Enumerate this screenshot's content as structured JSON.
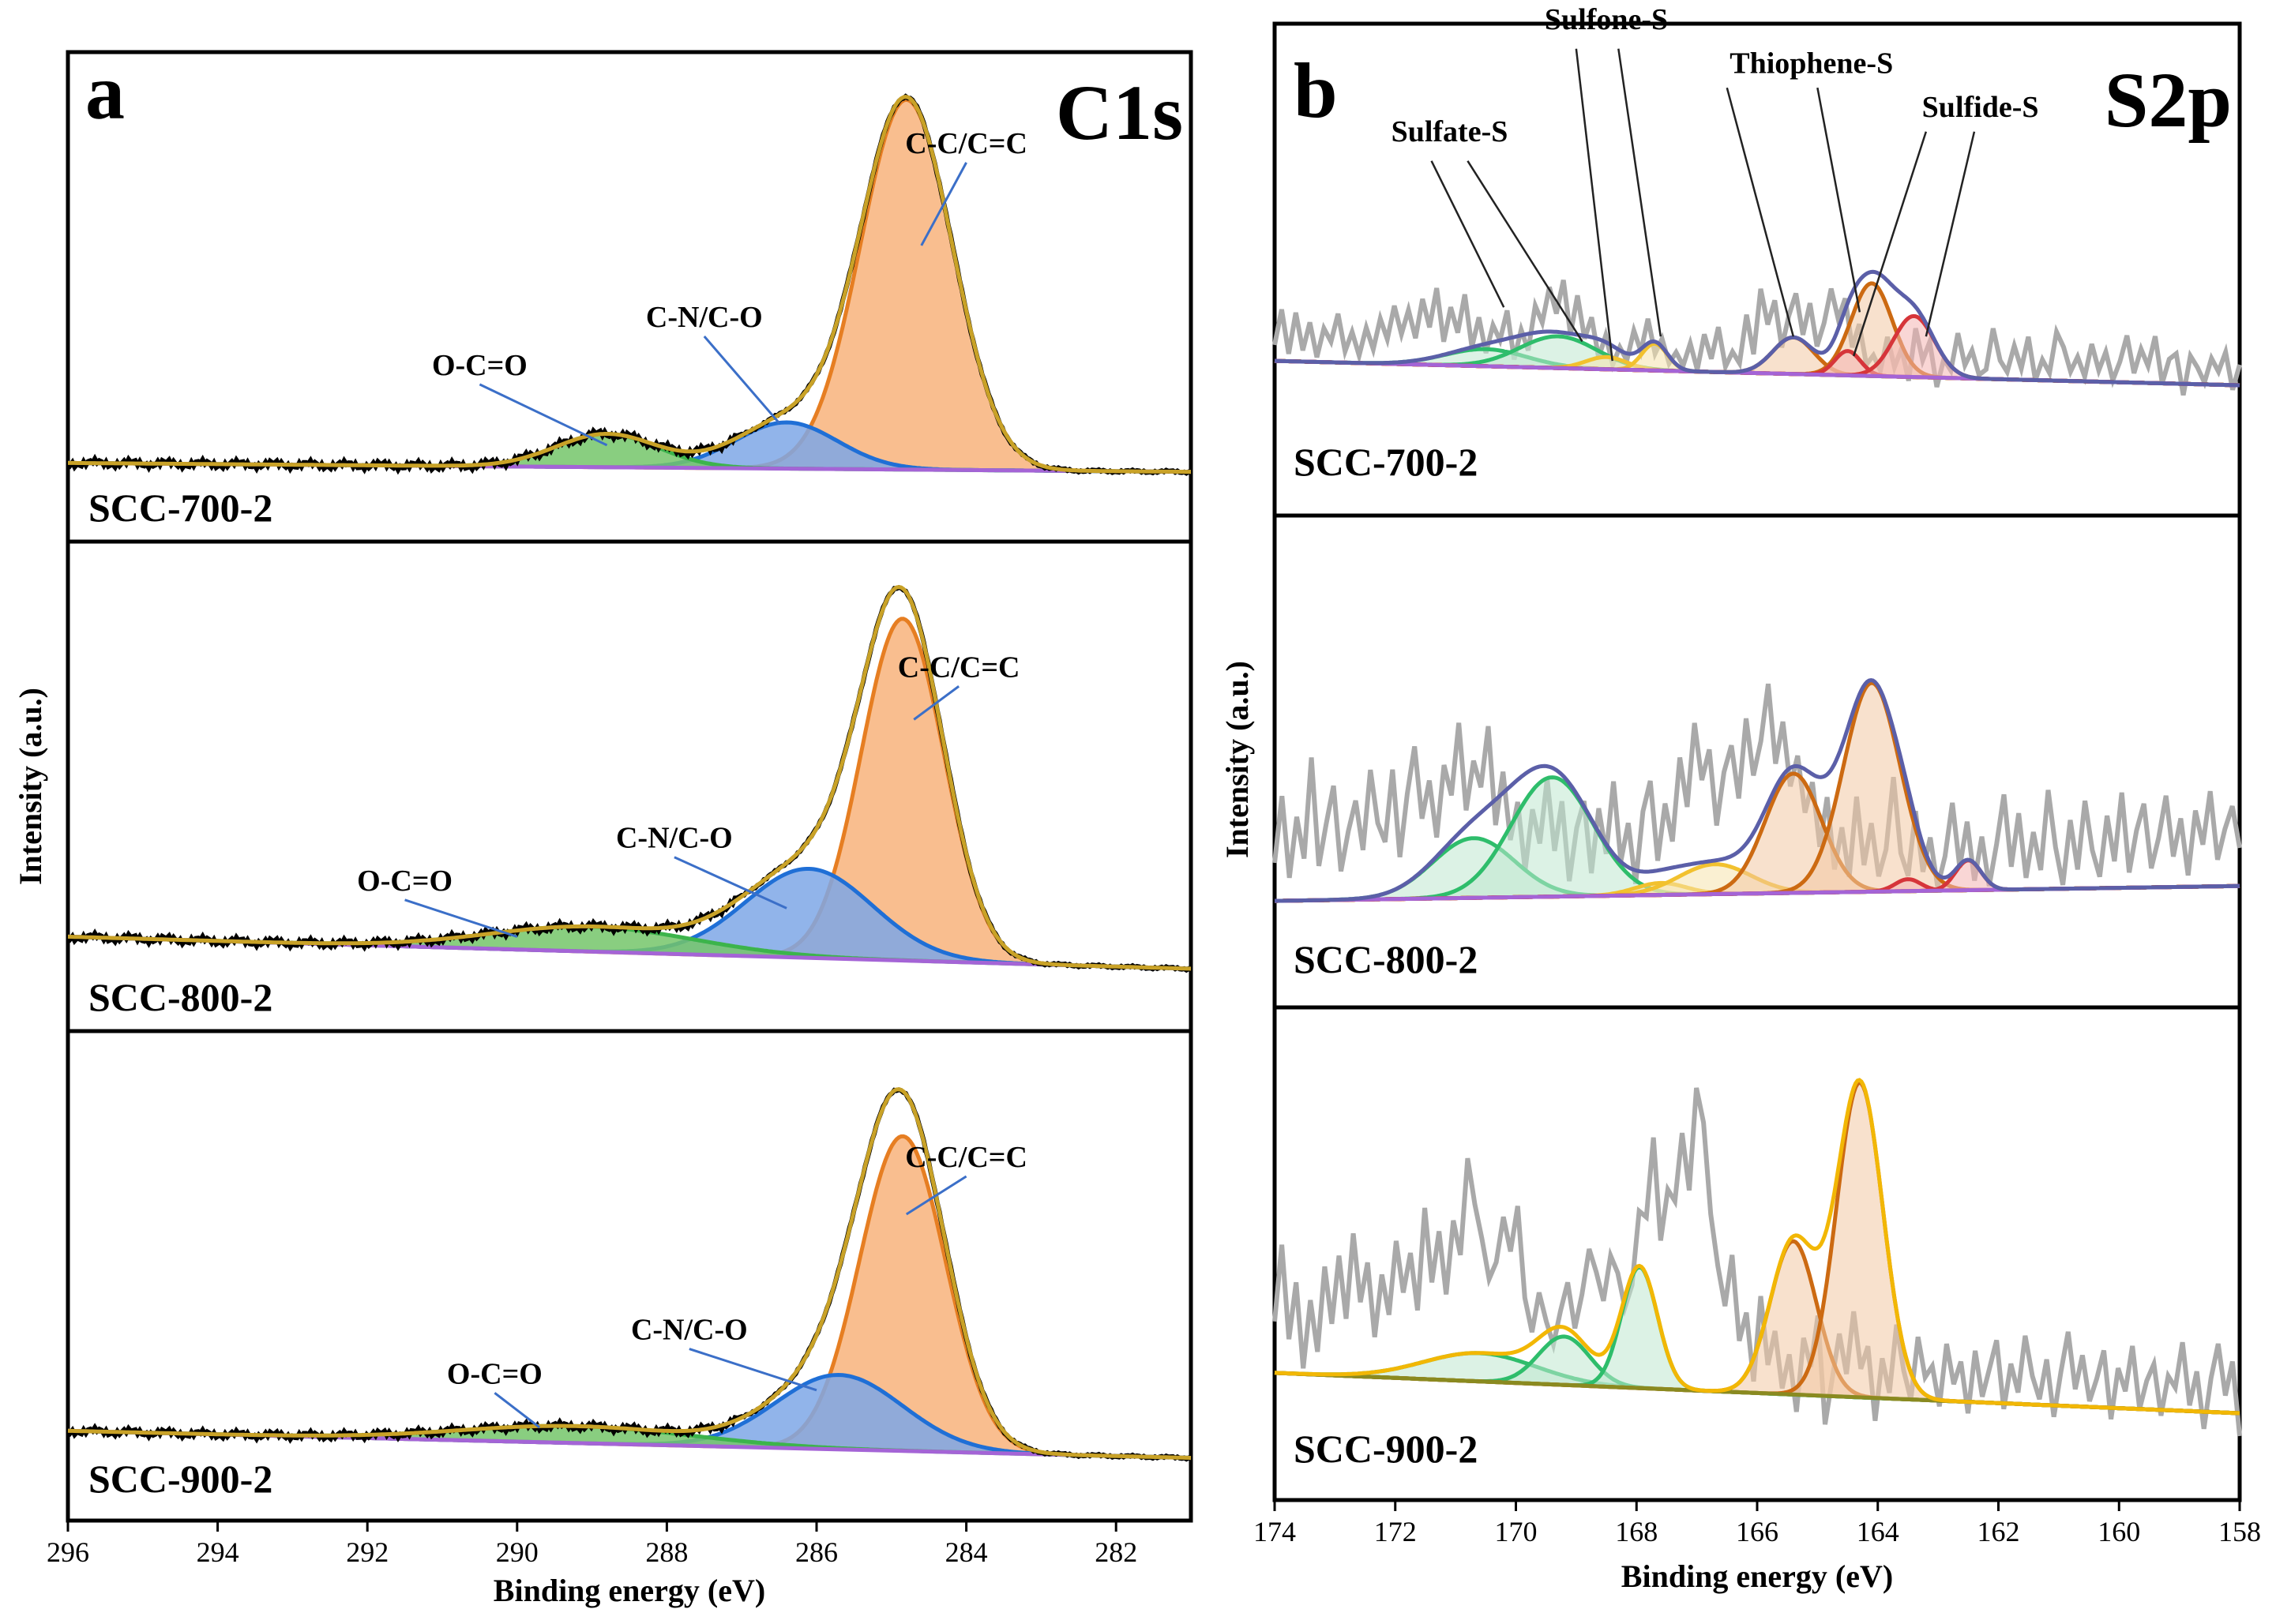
{
  "chart_data": [
    {
      "type": "line",
      "panel_letter": "a",
      "core_level": "C1s",
      "xlabel": "Binding energy (eV)",
      "ylabel": "Intensity (a.u.)",
      "xlim": [
        296,
        281
      ],
      "xticks": [
        296,
        294,
        292,
        290,
        288,
        286,
        284,
        282
      ],
      "samples": [
        {
          "name": "SCC-700-2",
          "baseline": {
            "start": 0.012,
            "end": -0.012
          },
          "components": [
            {
              "label": "C-C/C=C",
              "center": 284.8,
              "height": 1.0,
              "fwhm": 1.45,
              "line": "#e67e22",
              "fill": "#f8b37b"
            },
            {
              "label": "C-N/C-O",
              "center": 286.4,
              "height": 0.125,
              "fwhm": 1.6,
              "line": "#1f6fd6",
              "fill": "#7ea7e6"
            },
            {
              "label": "O-C=O",
              "center": 288.8,
              "height": 0.09,
              "fwhm": 1.6,
              "line": "#3cb44b",
              "fill": "#74c56a"
            }
          ],
          "annotations": [
            {
              "text": "C-C/C=C",
              "x": 284.0,
              "y": 0.85,
              "arrow_x": 284.6,
              "arrow_y": 0.6
            },
            {
              "text": "C-N/C-O",
              "x": 287.5,
              "y": 0.38,
              "arrow_x": 286.5,
              "arrow_y": 0.12
            },
            {
              "text": "O-C=O",
              "x": 290.5,
              "y": 0.25,
              "arrow_x": 288.8,
              "arrow_y": 0.06
            }
          ]
        },
        {
          "name": "SCC-800-2",
          "baseline": {
            "start": 0.07,
            "end": -0.02
          },
          "components": [
            {
              "label": "C-C/C=C",
              "center": 284.85,
              "height": 0.96,
              "fwhm": 1.3,
              "line": "#e67e22",
              "fill": "#f8b37b"
            },
            {
              "label": "C-N/C-O",
              "center": 286.1,
              "height": 0.25,
              "fwhm": 2.0,
              "line": "#1f6fd6",
              "fill": "#7ea7e6"
            },
            {
              "label": "O-C=O",
              "center": 289.0,
              "height": 0.07,
              "fwhm": 3.2,
              "line": "#3cb44b",
              "fill": "#74c56a"
            }
          ],
          "annotations": [
            {
              "text": "C-C/C=C",
              "x": 284.1,
              "y": 0.8,
              "arrow_x": 284.7,
              "arrow_y": 0.68
            },
            {
              "text": "C-N/C-O",
              "x": 287.9,
              "y": 0.32,
              "arrow_x": 286.4,
              "arrow_y": 0.15
            },
            {
              "text": "O-C=O",
              "x": 291.5,
              "y": 0.2,
              "arrow_x": 290.0,
              "arrow_y": 0.07
            }
          ]
        },
        {
          "name": "SCC-900-2",
          "baseline": {
            "start": 0.06,
            "end": -0.02
          },
          "components": [
            {
              "label": "C-C/C=C",
              "center": 284.85,
              "height": 0.93,
              "fwhm": 1.35,
              "line": "#e67e22",
              "fill": "#f8b37b"
            },
            {
              "label": "C-N/C-O",
              "center": 285.7,
              "height": 0.22,
              "fwhm": 2.0,
              "line": "#1f6fd6",
              "fill": "#7ea7e6"
            },
            {
              "label": "O-C=O",
              "center": 289.2,
              "height": 0.05,
              "fwhm": 3.6,
              "line": "#3cb44b",
              "fill": "#74c56a"
            }
          ],
          "annotations": [
            {
              "text": "C-C/C=C",
              "x": 284.0,
              "y": 0.84,
              "arrow_x": 284.8,
              "arrow_y": 0.7
            },
            {
              "text": "C-N/C-O",
              "x": 287.7,
              "y": 0.33,
              "arrow_x": 286.0,
              "arrow_y": 0.18
            },
            {
              "text": "O-C=O",
              "x": 290.3,
              "y": 0.2,
              "arrow_x": 289.7,
              "arrow_y": 0.07
            }
          ]
        }
      ]
    },
    {
      "type": "line",
      "panel_letter": "b",
      "core_level": "S2p",
      "xlabel": "Binding energy (eV)",
      "ylabel": "Intensity (a.u.)",
      "xlim": [
        174,
        158
      ],
      "xticks": [
        174,
        172,
        170,
        168,
        166,
        164,
        162,
        160,
        158
      ],
      "samples": [
        {
          "name": "SCC-700-2",
          "baseline": {
            "start": 0.1,
            "end": 0.0
          },
          "envelope_color": "#5b5fa8",
          "components": [
            {
              "label": "Sulfate-S",
              "center": 170.5,
              "height": 0.07,
              "fwhm": 1.6,
              "line": "#2ebd6b",
              "fill": "#bfe7cf"
            },
            {
              "label": "Sulfate-S",
              "center": 169.3,
              "height": 0.13,
              "fwhm": 1.5,
              "line": "#2ebd6b",
              "fill": "#bfe7cf"
            },
            {
              "label": "Sulfone-S",
              "center": 168.5,
              "height": 0.05,
              "fwhm": 0.8,
              "line": "#f2c12e",
              "fill": "#f6e4ad"
            },
            {
              "label": "Sulfone-S",
              "center": 167.7,
              "height": 0.11,
              "fwhm": 0.5,
              "line": "#f2c12e",
              "fill": "#f6e4ad"
            },
            {
              "label": "Thiophene-S",
              "center": 165.4,
              "height": 0.15,
              "fwhm": 0.8,
              "line": "#cc6a12",
              "fill": "#f3c9a4"
            },
            {
              "label": "Thiophene-S",
              "center": 164.1,
              "height": 0.38,
              "fwhm": 0.8,
              "line": "#cc6a12",
              "fill": "#f3c9a4"
            },
            {
              "label": "Sulfide-S",
              "center": 164.5,
              "height": 0.1,
              "fwhm": 0.5,
              "line": "#d6353a",
              "fill": "#f4b4b3"
            },
            {
              "label": "Sulfide-S",
              "center": 163.4,
              "height": 0.25,
              "fwhm": 0.8,
              "line": "#d6353a",
              "fill": "#f4b4b3"
            }
          ],
          "raw": [
            0.17,
            0.55,
            0.08,
            0.52,
            0.12,
            0.42,
            0.05,
            0.36,
            0.22,
            0.52,
            0.12,
            0.33,
            0.08,
            0.38,
            0.15,
            0.48,
            0.26,
            0.62,
            0.32,
            0.58,
            0.28,
            0.7,
            0.4,
            0.82,
            0.25,
            0.62,
            0.35,
            0.76,
            0.2,
            0.52,
            0.14,
            0.44,
            0.28,
            0.6,
            0.08,
            0.4,
            0.18,
            0.66,
            0.48,
            0.86,
            0.58,
            0.94,
            0.36,
            0.78,
            0.32,
            0.55,
            0.12,
            0.36,
            0.05,
            0.24,
            0.1,
            0.42,
            0.2,
            0.55,
            0.18,
            0.34,
            0.08,
            0.2,
            0.06,
            0.3,
            0.02,
            0.4,
            0.14,
            0.48,
            0.06,
            0.22,
            0.1,
            0.62,
            0.2,
            0.9,
            0.52,
            0.78,
            0.28,
            0.62,
            0.86,
            0.42,
            0.76,
            0.3,
            0.55,
            0.92,
            0.6,
            0.82,
            0.3,
            0.55,
            0.12,
            0.22,
            0.06,
            0.42,
            0.1,
            0.3,
            -0.04,
            0.52,
            0.18,
            0.38,
            -0.1,
            0.2,
            0.08,
            0.48,
            0.14,
            0.3,
            0.04,
            0.1,
            0.54,
            0.2,
            0.08,
            0.36,
            0.12,
            0.46,
            0.0,
            0.22,
            0.08,
            0.52,
            0.36,
            0.1,
            0.26,
            0.05,
            0.4,
            0.12,
            0.32,
            0.02,
            0.22,
            0.5,
            0.1,
            0.36,
            0.18,
            0.5,
            0.0,
            0.26,
            0.32,
            -0.12,
            0.3,
            0.18,
            0.02,
            0.28,
            0.14,
            0.35,
            -0.05,
            0.22
          ],
          "annotations": [
            {
              "text": "Sulfate-S",
              "x": 171.1,
              "y": 1.0
            },
            {
              "text": "Sulfone-S",
              "x": 168.5,
              "y": 1.46
            },
            {
              "text": "Thiophene-S",
              "x": 165.1,
              "y": 1.28
            },
            {
              "text": "Sulfide-S",
              "x": 162.3,
              "y": 1.1
            }
          ],
          "arrows": [
            {
              "fx": 171.4,
              "fy": 0.92,
              "tx": 170.2,
              "ty": 0.32
            },
            {
              "fx": 170.8,
              "fy": 0.92,
              "tx": 168.9,
              "ty": 0.18
            },
            {
              "fx": 169.0,
              "fy": 1.38,
              "tx": 168.4,
              "ty": 0.1
            },
            {
              "fx": 168.3,
              "fy": 1.38,
              "tx": 167.6,
              "ty": 0.2
            },
            {
              "fx": 166.5,
              "fy": 1.22,
              "tx": 165.4,
              "ty": 0.2
            },
            {
              "fx": 165.0,
              "fy": 1.22,
              "tx": 164.3,
              "ty": 0.3
            },
            {
              "fx": 163.2,
              "fy": 1.04,
              "tx": 164.4,
              "ty": 0.12
            },
            {
              "fx": 162.4,
              "fy": 1.04,
              "tx": 163.2,
              "ty": 0.2
            }
          ]
        },
        {
          "name": "SCC-800-2",
          "baseline": {
            "start": 0.05,
            "end": 0.1
          },
          "envelope_color": "#5b5fa8",
          "components": [
            {
              "label": "Sulfate-S",
              "center": 170.7,
              "height": 0.2,
              "fwhm": 1.6,
              "line": "#2ebd6b",
              "fill": "#bfe7cf"
            },
            {
              "label": "Sulfate-S",
              "center": 169.4,
              "height": 0.4,
              "fwhm": 1.6,
              "line": "#2ebd6b",
              "fill": "#bfe7cf"
            },
            {
              "label": "Sulfone-S",
              "center": 167.6,
              "height": 0.04,
              "fwhm": 1.0,
              "line": "#f2c12e",
              "fill": "#f6e4ad"
            },
            {
              "label": "Sulfone-S",
              "center": 166.7,
              "height": 0.1,
              "fwhm": 1.4,
              "line": "#f2c12e",
              "fill": "#f6e4ad"
            },
            {
              "label": "Thiophene-S",
              "center": 165.4,
              "height": 0.4,
              "fwhm": 1.1,
              "line": "#cc6a12",
              "fill": "#f3c9a4"
            },
            {
              "label": "Thiophene-S",
              "center": 164.1,
              "height": 0.7,
              "fwhm": 1.1,
              "line": "#cc6a12",
              "fill": "#f3c9a4"
            },
            {
              "label": "Sulfide-S",
              "center": 163.5,
              "height": 0.04,
              "fwhm": 0.5,
              "line": "#d6353a",
              "fill": "#f4b4b3"
            },
            {
              "label": "Sulfide-S",
              "center": 162.5,
              "height": 0.1,
              "fwhm": 0.5,
              "line": "#d6353a",
              "fill": "#f4b4b3"
            }
          ],
          "raw": [
            0.2,
            0.55,
            0.12,
            0.44,
            0.22,
            0.75,
            0.18,
            0.4,
            0.6,
            0.15,
            0.36,
            0.52,
            0.26,
            0.68,
            0.4,
            0.3,
            0.68,
            0.22,
            0.55,
            0.8,
            0.42,
            0.62,
            0.32,
            0.7,
            0.54,
            0.92,
            0.46,
            0.72,
            0.58,
            0.9,
            0.38,
            0.66,
            0.3,
            0.5,
            0.14,
            0.46,
            0.28,
            0.62,
            0.24,
            0.5,
            0.08,
            0.36,
            0.5,
            0.12,
            0.46,
            0.22,
            0.6,
            0.18,
            0.38,
            0.06,
            0.44,
            0.6,
            0.18,
            0.48,
            0.28,
            0.72,
            0.46,
            0.9,
            0.6,
            0.76,
            0.36,
            0.64,
            0.78,
            0.5,
            0.92,
            0.62,
            0.8,
            1.1,
            0.68,
            0.9,
            0.56,
            0.72,
            0.42,
            0.58,
            0.24,
            0.5,
            0.12,
            0.34,
            0.08,
            0.5,
            0.14,
            0.36,
            0.08,
            0.22,
            0.6,
            0.2,
            0.08,
            0.42,
            0.1,
            0.28,
            0.02,
            0.18,
            0.46,
            0.12,
            0.36,
            0.05,
            0.28,
            0.02,
            0.24,
            0.5,
            0.12,
            0.4,
            0.06,
            0.3,
            0.1,
            0.52,
            0.22,
            0.02,
            0.36,
            0.1,
            0.46,
            0.2,
            0.06,
            0.38,
            0.14,
            0.5,
            0.08,
            0.3,
            0.44,
            0.1,
            0.26,
            0.48,
            0.16,
            0.36,
            0.06,
            0.4,
            0.22,
            0.5,
            0.14,
            0.3,
            0.42,
            0.2
          ],
          "annotations": [],
          "arrows": []
        },
        {
          "name": "SCC-900-2",
          "baseline": {
            "start": 0.1,
            "end": 0.0
          },
          "envelope_color": "#f2b705",
          "components": [
            {
              "label": "Sulfate-S",
              "center": 170.6,
              "height": 0.07,
              "fwhm": 2.2,
              "line": "#2ebd6b",
              "fill": "#bfe7cf"
            },
            {
              "label": "Sulfate-S",
              "center": 169.2,
              "height": 0.12,
              "fwhm": 1.0,
              "line": "#2ebd6b",
              "fill": "#bfe7cf"
            },
            {
              "label": "Sulfone-S",
              "center": 167.95,
              "height": 0.3,
              "fwhm": 0.7,
              "line": "#2ebd6b",
              "fill": "#bfe7cf"
            },
            {
              "label": "Thiophene-S",
              "center": 165.4,
              "height": 0.38,
              "fwhm": 0.9,
              "line": "#cc6a12",
              "fill": "#f3c9a4"
            },
            {
              "label": "Thiophene-S",
              "center": 164.3,
              "height": 0.78,
              "fwhm": 0.9,
              "line": "#cc6a12",
              "fill": "#f3c9a4"
            }
          ],
          "raw": [
            0.18,
            0.45,
            0.12,
            0.32,
            0.02,
            0.26,
            0.08,
            0.38,
            0.18,
            0.42,
            0.2,
            0.5,
            0.26,
            0.4,
            0.14,
            0.36,
            0.22,
            0.48,
            0.3,
            0.44,
            0.24,
            0.6,
            0.34,
            0.52,
            0.3,
            0.56,
            0.44,
            0.78,
            0.62,
            0.5,
            0.36,
            0.42,
            0.58,
            0.46,
            0.62,
            0.3,
            0.18,
            0.32,
            0.22,
            0.14,
            0.26,
            0.36,
            0.2,
            0.32,
            0.48,
            0.4,
            0.3,
            0.46,
            0.4,
            0.28,
            0.36,
            0.62,
            0.6,
            0.88,
            0.52,
            0.7,
            0.66,
            0.9,
            0.7,
            1.06,
            0.94,
            0.62,
            0.44,
            0.3,
            0.48,
            0.18,
            0.28,
            0.04,
            0.34,
            0.1,
            0.22,
            0.02,
            0.14,
            -0.06,
            0.2,
            0.1,
            0.28,
            -0.1,
            0.06,
            0.22,
            0.08,
            0.3,
            0.1,
            0.18,
            -0.08,
            0.14,
            0.02,
            0.26,
            0.1,
            0.0,
            0.22,
            0.08,
            0.12,
            -0.02,
            0.2,
            0.06,
            0.14,
            -0.04,
            0.18,
            0.02,
            0.12,
            0.22,
            -0.02,
            0.14,
            0.04,
            0.24,
            0.1,
            0.02,
            0.16,
            -0.04,
            0.12,
            0.26,
            0.06,
            0.18,
            0.02,
            0.1,
            0.2,
            -0.04,
            0.14,
            0.06,
            0.22,
            0.0,
            0.1,
            0.16,
            -0.02,
            0.12,
            0.08,
            0.24,
            0.02,
            0.14,
            -0.06,
            0.12,
            0.24,
            0.06,
            0.18,
            -0.08
          ],
          "annotations": [],
          "arrows": []
        }
      ]
    }
  ]
}
